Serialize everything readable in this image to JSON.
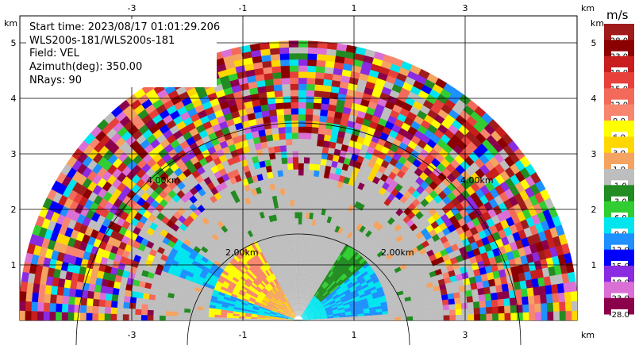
{
  "info": {
    "start_time": "Start time: 2023/08/17 01:01:29.206",
    "instrument": "WLS200s-181/WLS200s-181",
    "field": "Field: VEL",
    "azimuth": "Azimuth(deg): 350.00",
    "nrays": "NRays: 90"
  },
  "axis_unit_x": "km",
  "axis_unit_y": "km",
  "colorbar_unit": "m/s",
  "range_ring_labels": [
    "2.00km",
    "2.00km",
    "4.00km",
    "4.00km"
  ],
  "chart_data": {
    "type": "heatmap",
    "title": "",
    "xlabel": "km",
    "ylabel": "km",
    "xlim": [
      -5,
      5
    ],
    "ylim": [
      0,
      5.6
    ],
    "x_ticks": [
      "-3",
      "-1",
      "1",
      "3"
    ],
    "y_ticks": [
      "1",
      "2",
      "3",
      "4",
      "5"
    ],
    "grid": true,
    "range_rings_km": [
      2,
      4
    ],
    "max_range_km": 5.0,
    "colorbar": {
      "label": "m/s",
      "ticks": [
        "28.0",
        "23.0",
        "18.0",
        "15.0",
        "12.0",
        "9.0",
        "6.0",
        "3.0",
        "1.0",
        "-1.0",
        "-3.0",
        "-6.0",
        "-9.0",
        "-12.0",
        "-15.0",
        "-18.0",
        "-23.0",
        "-28.0"
      ],
      "colors": [
        "#a01c1c",
        "#8b0000",
        "#c81e1e",
        "#e8413c",
        "#f46a5a",
        "#f8866e",
        "#ffff00",
        "#ffd700",
        "#f4a460",
        "#bebebe",
        "#228b22",
        "#32cd32",
        "#00e5ee",
        "#1e90ff",
        "#0000ff",
        "#8a2be2",
        "#da70d6",
        "#8b004b"
      ]
    }
  }
}
